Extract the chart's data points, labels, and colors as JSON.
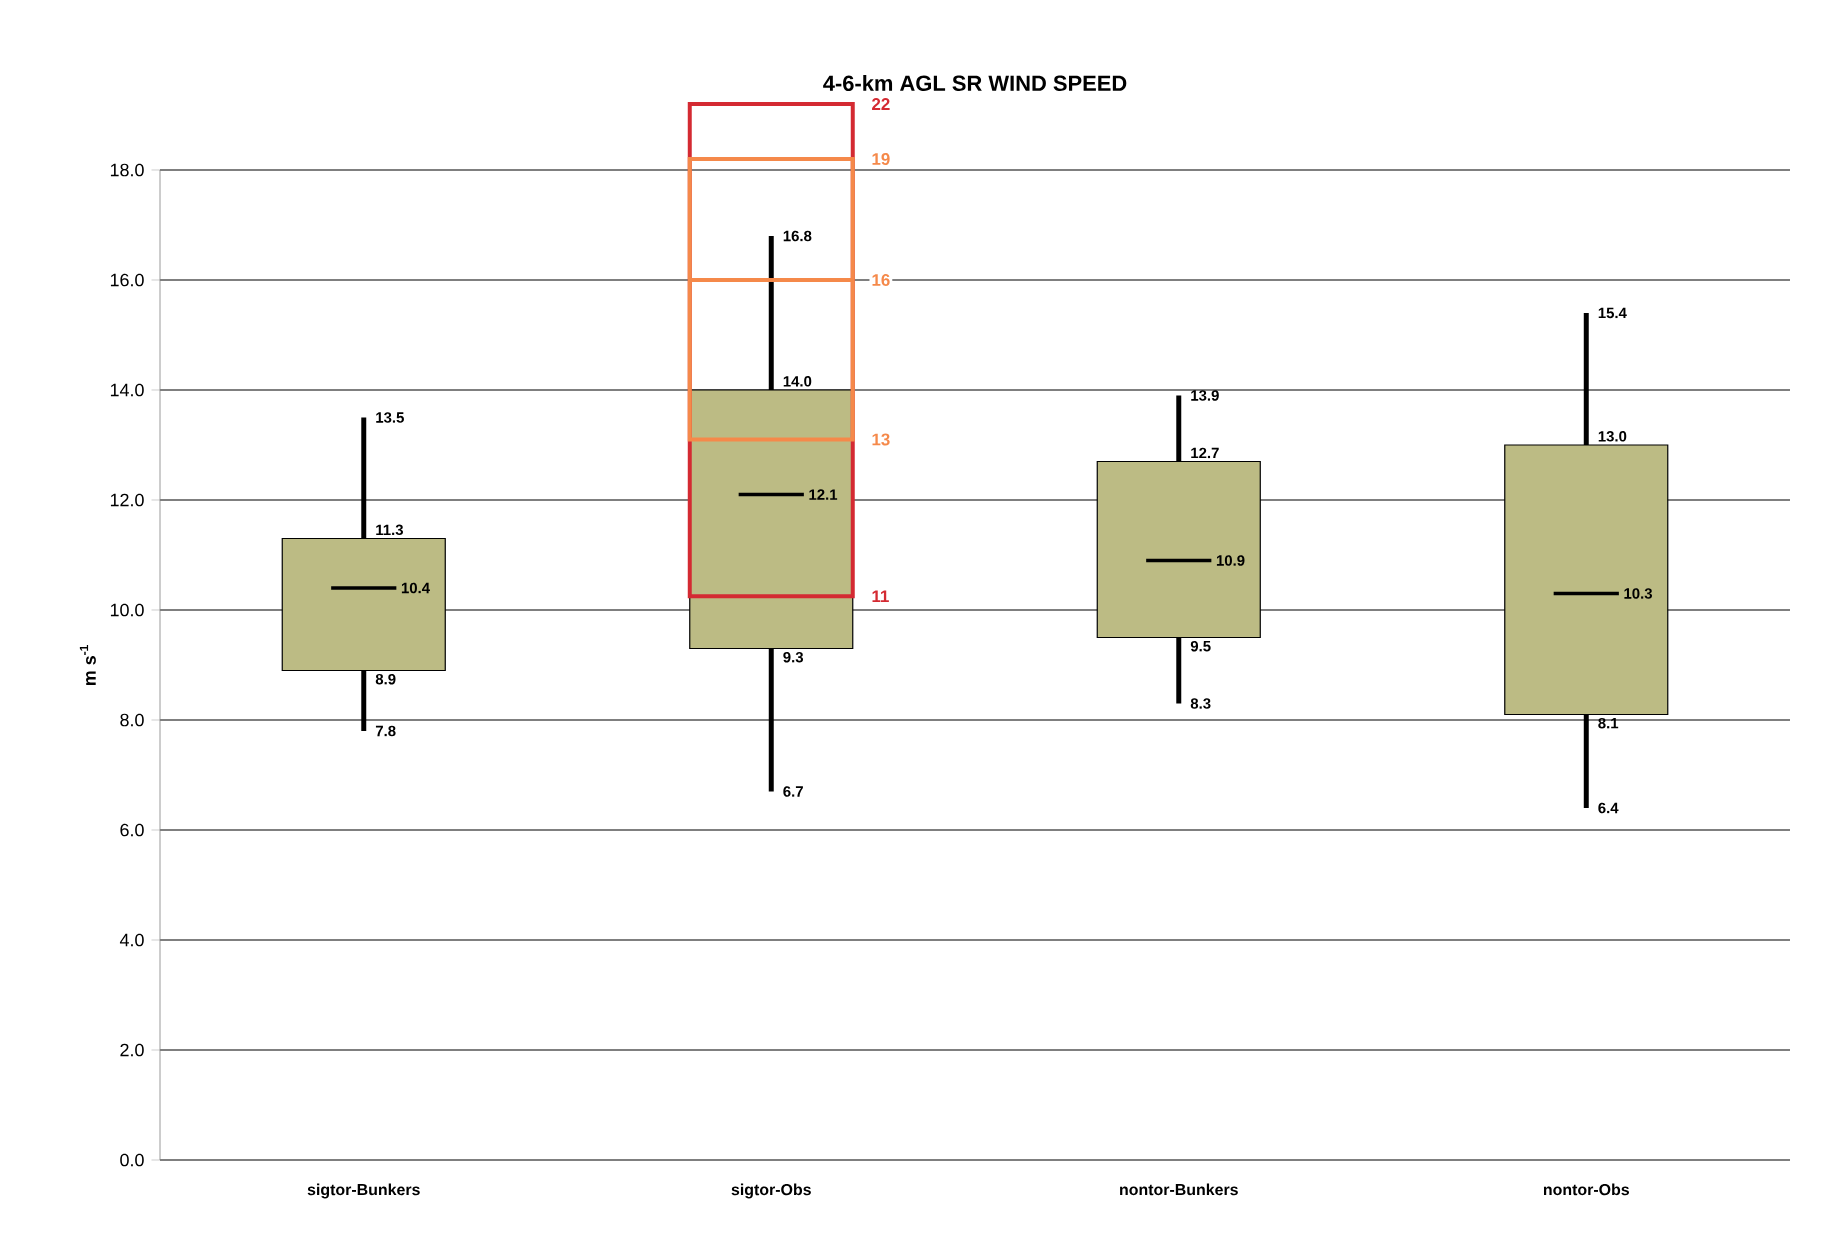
{
  "chart_data": {
    "type": "box",
    "title": "4-6-km AGL SR WIND SPEED",
    "ylabel": "m s$^{-1}$",
    "categories": [
      "sigtor-Bunkers",
      "sigtor-Obs",
      "nontor-Bunkers",
      "nontor-Obs"
    ],
    "boxes": [
      {
        "low": 7.8,
        "q1": 8.9,
        "median": 10.4,
        "q3": 11.3,
        "high": 13.5
      },
      {
        "low": 6.7,
        "q1": 9.3,
        "median": 12.1,
        "q3": 14.0,
        "high": 16.8
      },
      {
        "low": 8.3,
        "q1": 9.5,
        "median": 10.9,
        "q3": 12.7,
        "high": 13.9
      },
      {
        "low": 6.4,
        "q1": 8.1,
        "median": 10.3,
        "q3": 13.0,
        "high": 15.4
      }
    ],
    "color": "#bcbb84",
    "grid": "y",
    "ylim": [
      0,
      18
    ],
    "yticks": [
      {
        "value": 0,
        "label": "0.0"
      },
      {
        "value": 2,
        "label": "2.0"
      },
      {
        "value": 4,
        "label": "4.0"
      },
      {
        "value": 6,
        "label": "6.0"
      },
      {
        "value": 8,
        "label": "8.0"
      },
      {
        "value": 10,
        "label": "10.0"
      },
      {
        "value": 12,
        "label": "12.0"
      },
      {
        "value": 14,
        "label": "14.0"
      },
      {
        "value": 16,
        "label": "16.0"
      },
      {
        "value": 18,
        "label": "18.0"
      }
    ],
    "annotations": [
      "22",
      "19",
      "16",
      "13",
      "11",
      {
        "text": "7.8",
        "x": "sigtor-Bunkers",
        "y": 7.8
      },
      {
        "text": "8.9",
        "x": "sigtor-Bunkers",
        "y": 8.9
      },
      {
        "text": "10.4",
        "x": "sigtor-Bunkers",
        "y": 10.4
      },
      {
        "text": "11.3",
        "x": "sigtor-Bunkers",
        "y": 11.3
      },
      {
        "text": "13.5",
        "x": "sigtor-Bunkers",
        "y": 13.5
      },
      {
        "text": "6.7",
        "x": "sigtor-Obs",
        "y": 6.7
      },
      {
        "text": "9.3",
        "x": "sigtor-Obs",
        "y": 9.3
      },
      {
        "text": "12.1",
        "x": "sigtor-Obs",
        "y": 12.1
      },
      {
        "text": "14.0",
        "x": "sigtor-Obs",
        "y": 14.0
      },
      {
        "text": "16.8",
        "x": "sigtor-Obs",
        "y": 16.8
      },
      {
        "text": "8.3",
        "x": "nontor-Bunkers",
        "y": 8.3
      },
      {
        "text": "9.5",
        "x": "nontor-Bunkers",
        "y": 9.5
      },
      {
        "text": "10.9",
        "x": "nontor-Bunkers",
        "y": 10.9
      },
      {
        "text": "12.7",
        "x": "nontor-Bunkers",
        "y": 12.7
      },
      {
        "text": "13.9",
        "x": "nontor-Bunkers",
        "y": 13.9
      },
      {
        "text": "6.4",
        "x": "nontor-Obs",
        "y": 6.4
      },
      {
        "text": "8.1",
        "x": "nontor-Obs",
        "y": 8.1
      },
      {
        "text": "10.3",
        "x": "nontor-Obs",
        "y": 10.3
      },
      {
        "text": "13.0",
        "x": "nontor-Obs",
        "y": 13.0
      },
      {
        "text": "15.4",
        "x": "nontor-Obs",
        "y": 15.4
      }
    ]
  }
}
